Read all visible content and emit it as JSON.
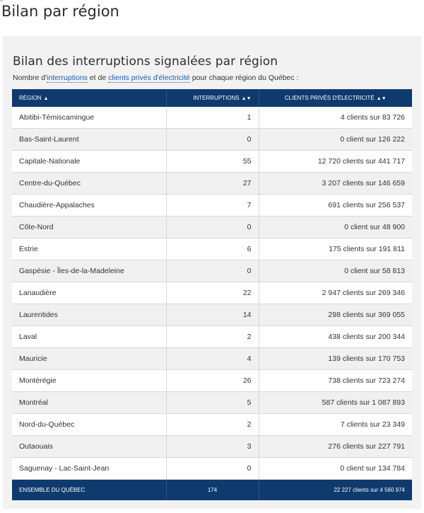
{
  "page": {
    "title": "Bilan par région"
  },
  "section": {
    "title": "Bilan des interruptions signalées par région",
    "intro_before": "Nombre d'",
    "intro_link1": "interruptions",
    "intro_middle": " et de ",
    "intro_link2": "clients privés d'électricité",
    "intro_after": " pour chaque région du Québec :"
  },
  "table": {
    "headers": {
      "region": "Région",
      "interruptions": "Interruptions",
      "clients": "Clients privés d'électricité"
    },
    "sort_icons": {
      "region": "sort-ascending-icon",
      "interruptions": "sort-both-icon",
      "clients": "sort-both-icon"
    },
    "rows": [
      {
        "region": "Abitibi-Témiscamingue",
        "interruptions": "1",
        "clients": "4 clients sur 83 726"
      },
      {
        "region": "Bas-Saint-Laurent",
        "interruptions": "0",
        "clients": "0 client sur 126 222"
      },
      {
        "region": "Capitale-Nationale",
        "interruptions": "55",
        "clients": "12 720 clients sur 441 717"
      },
      {
        "region": "Centre-du-Québec",
        "interruptions": "27",
        "clients": "3 207 clients sur 146 659"
      },
      {
        "region": "Chaudière-Appalaches",
        "interruptions": "7",
        "clients": "691 clients sur 256 537"
      },
      {
        "region": "Côte-Nord",
        "interruptions": "0",
        "clients": "0 client sur 48 900"
      },
      {
        "region": "Estrie",
        "interruptions": "6",
        "clients": "175 clients sur 191 811"
      },
      {
        "region": "Gaspésie - Îles-de-la-Madeleine",
        "interruptions": "0",
        "clients": "0 client sur 58 813"
      },
      {
        "region": "Lanaudière",
        "interruptions": "22",
        "clients": "2 947 clients sur 269 346"
      },
      {
        "region": "Laurentides",
        "interruptions": "14",
        "clients": "298 clients sur 369 055"
      },
      {
        "region": "Laval",
        "interruptions": "2",
        "clients": "438 clients sur 200 344"
      },
      {
        "region": "Mauricie",
        "interruptions": "4",
        "clients": "139 clients sur 170 753"
      },
      {
        "region": "Montérégie",
        "interruptions": "26",
        "clients": "738 clients sur 723 274"
      },
      {
        "region": "Montréal",
        "interruptions": "5",
        "clients": "587 clients sur 1 087 893"
      },
      {
        "region": "Nord-du-Québec",
        "interruptions": "2",
        "clients": "7 clients sur 23 349"
      },
      {
        "region": "Outaouais",
        "interruptions": "3",
        "clients": "276 clients sur 227 791"
      },
      {
        "region": "Saguenay - Lac-Saint-Jean",
        "interruptions": "0",
        "clients": "0 client sur 134 784"
      }
    ],
    "total": {
      "label": "Ensemble du Québec",
      "interruptions": "174",
      "clients": "22 227 clients sur 4 560 974"
    }
  },
  "colors": {
    "header_bg": "#0e3a6e",
    "link": "#1f5bb0",
    "panel_bg": "#f2f2f2"
  }
}
